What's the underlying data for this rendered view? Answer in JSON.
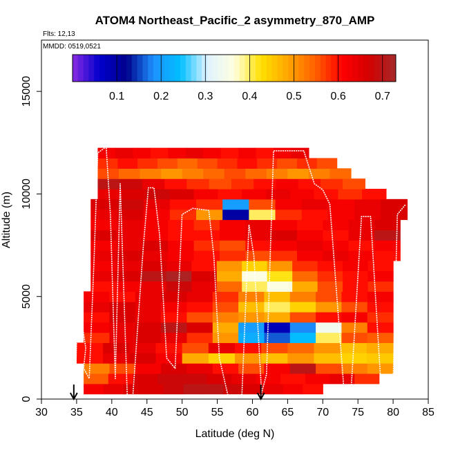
{
  "chart_data": {
    "type": "heatmap",
    "title": "ATOM4 Northeast_Pacific_2 asymmetry_870_AMP",
    "flights_label": "Flts: 12,13",
    "mmdd_label": "MMDD: 0519,0521",
    "xlabel": "Latitude (deg N)",
    "ylabel": "Altitude (m)",
    "xlim": [
      30,
      85
    ],
    "ylim": [
      0,
      17500
    ],
    "x_ticks": [
      "30",
      "35",
      "40",
      "45",
      "50",
      "55",
      "60",
      "65",
      "70",
      "75",
      "80",
      "85"
    ],
    "y_ticks": [
      "0",
      "5000",
      "10000",
      "15000"
    ],
    "colorbar": {
      "range": [
        0.0,
        0.73
      ],
      "ticks": [
        "0.1",
        "0.2",
        "0.3",
        "0.4",
        "0.5",
        "0.6",
        "0.7"
      ],
      "colors": [
        "#8a2be2",
        "#0000cd",
        "#00008b",
        "#1e90ff",
        "#00bfff",
        "#e0f2ff",
        "#ffffe0",
        "#ffe000",
        "#ffa500",
        "#ff6000",
        "#ff0000",
        "#d40000",
        "#a52a2a"
      ]
    },
    "arrow_markers": [
      34.6,
      61.2
    ],
    "rows": [
      {
        "alt": 500,
        "lat": [
          36,
          70
        ],
        "v": [
          0.62,
          0.64,
          0.66,
          0.66,
          0.68,
          0.7,
          0.7,
          0.68,
          0.66,
          0.64,
          0.62,
          0.6
        ]
      },
      {
        "alt": 1000,
        "lat": [
          36,
          78
        ],
        "v": [
          0.55,
          0.6,
          0.66,
          0.68,
          0.68,
          0.66,
          0.64,
          0.62,
          0.6,
          0.62,
          0.64,
          0.58
        ]
      },
      {
        "alt": 1500,
        "lat": [
          36,
          80
        ],
        "v": [
          0.52,
          0.56,
          0.62,
          0.66,
          0.64,
          0.6,
          0.56,
          0.62,
          0.7,
          0.56,
          0.52,
          0.5
        ]
      },
      {
        "alt": 2000,
        "lat": [
          35,
          80
        ],
        "v": [
          0.6,
          0.64,
          0.66,
          0.62,
          0.48,
          0.44,
          0.5,
          0.46,
          0.5,
          0.46,
          0.44,
          0.45
        ]
      },
      {
        "alt": 2500,
        "lat": [
          35,
          80
        ],
        "v": [
          0.6,
          0.66,
          0.64,
          0.6,
          0.56,
          0.64,
          0.6,
          0.56,
          0.54,
          0.5,
          0.46,
          0.48
        ]
      },
      {
        "alt": 3000,
        "lat": [
          36,
          80
        ],
        "v": [
          0.58,
          0.64,
          0.66,
          0.64,
          0.58,
          0.5,
          0.22,
          0.16,
          0.24,
          0.4,
          0.56,
          0.55
        ]
      },
      {
        "alt": 3500,
        "lat": [
          36,
          80
        ],
        "v": [
          0.62,
          0.64,
          0.66,
          0.7,
          0.66,
          0.48,
          0.2,
          0.08,
          0.18,
          0.34,
          0.52,
          0.6
        ]
      },
      {
        "alt": 4000,
        "lat": [
          36,
          80
        ],
        "v": [
          0.6,
          0.66,
          0.64,
          0.6,
          0.56,
          0.52,
          0.5,
          0.48,
          0.56,
          0.6,
          0.62,
          0.58
        ]
      },
      {
        "alt": 4500,
        "lat": [
          36,
          80
        ],
        "v": [
          0.64,
          0.66,
          0.64,
          0.62,
          0.6,
          0.56,
          0.46,
          0.4,
          0.44,
          0.5,
          0.56,
          0.6
        ]
      },
      {
        "alt": 5000,
        "lat": [
          36,
          80
        ],
        "v": [
          0.62,
          0.6,
          0.64,
          0.66,
          0.64,
          0.58,
          0.52,
          0.46,
          0.52,
          0.56,
          0.6,
          0.62
        ]
      },
      {
        "alt": 5500,
        "lat": [
          37,
          80
        ],
        "v": [
          0.6,
          0.62,
          0.64,
          0.68,
          0.64,
          0.54,
          0.4,
          0.36,
          0.48,
          0.56,
          0.6,
          0.58
        ]
      },
      {
        "alt": 6000,
        "lat": [
          37,
          80
        ],
        "v": [
          0.64,
          0.66,
          0.7,
          0.72,
          0.66,
          0.48,
          0.36,
          0.42,
          0.54,
          0.58,
          0.6,
          0.62
        ]
      },
      {
        "alt": 6500,
        "lat": [
          37,
          80
        ],
        "v": [
          0.62,
          0.64,
          0.66,
          0.64,
          0.6,
          0.5,
          0.44,
          0.5,
          0.58,
          0.6,
          0.62,
          0.6
        ]
      },
      {
        "alt": 7000,
        "lat": [
          37,
          81
        ],
        "v": [
          0.64,
          0.66,
          0.64,
          0.62,
          0.6,
          0.58,
          0.56,
          0.58,
          0.62,
          0.64,
          0.62,
          0.6
        ]
      },
      {
        "alt": 7500,
        "lat": [
          37,
          81
        ],
        "v": [
          0.62,
          0.64,
          0.66,
          0.62,
          0.58,
          0.56,
          0.6,
          0.62,
          0.64,
          0.62,
          0.6,
          0.62
        ]
      },
      {
        "alt": 8000,
        "lat": [
          37,
          81
        ],
        "v": [
          0.66,
          0.64,
          0.62,
          0.6,
          0.6,
          0.62,
          0.64,
          0.66,
          0.62,
          0.6,
          0.64,
          0.7
        ]
      },
      {
        "alt": 8500,
        "lat": [
          37,
          81
        ],
        "v": [
          0.62,
          0.64,
          0.62,
          0.6,
          0.58,
          0.62,
          0.64,
          0.62,
          0.6,
          0.62,
          0.64,
          0.66
        ]
      },
      {
        "alt": 9000,
        "lat": [
          37,
          82
        ],
        "v": [
          0.64,
          0.66,
          0.62,
          0.58,
          0.5,
          0.1,
          0.4,
          0.58,
          0.6,
          0.62,
          0.64,
          0.66
        ]
      },
      {
        "alt": 9500,
        "lat": [
          37,
          82
        ],
        "v": [
          0.66,
          0.68,
          0.64,
          0.6,
          0.58,
          0.2,
          0.56,
          0.62,
          0.64,
          0.62,
          0.64,
          0.66
        ]
      },
      {
        "alt": 10000,
        "lat": [
          38,
          79
        ],
        "v": [
          0.64,
          0.66,
          0.68,
          0.66,
          0.62,
          0.6,
          0.62,
          0.64,
          0.62,
          0.6,
          0.58,
          0.6
        ]
      },
      {
        "alt": 10500,
        "lat": [
          38,
          76
        ],
        "v": [
          0.7,
          0.68,
          0.64,
          0.6,
          0.58,
          0.56,
          0.58,
          0.6,
          0.62,
          0.6,
          0.58,
          0.56
        ]
      },
      {
        "alt": 11000,
        "lat": [
          38,
          74
        ],
        "v": [
          0.56,
          0.54,
          0.52,
          0.5,
          0.52,
          0.54,
          0.56,
          0.54,
          0.52,
          0.5,
          0.52,
          0.54
        ]
      },
      {
        "alt": 11500,
        "lat": [
          38,
          72
        ],
        "v": [
          0.58,
          0.6,
          0.58,
          0.56,
          0.54,
          0.56,
          0.58,
          0.6,
          0.58,
          0.56,
          0.58,
          0.56
        ]
      },
      {
        "alt": 12000,
        "lat": [
          38,
          68
        ],
        "v": [
          0.62,
          0.64,
          0.62,
          0.6,
          0.62,
          0.64,
          0.62,
          0.6,
          0.62,
          0.6,
          0.62,
          0.64
        ]
      }
    ],
    "flight_track": [
      [
        34.8,
        500
      ],
      [
        35.2,
        5000
      ],
      [
        36.3,
        2500
      ],
      [
        36.0,
        1500
      ],
      [
        36.8,
        1000
      ],
      [
        37.5,
        7000
      ],
      [
        38.0,
        12000
      ],
      [
        39.2,
        12300
      ],
      [
        39.8,
        9000
      ],
      [
        40.5,
        1000
      ],
      [
        41.2,
        10500
      ],
      [
        42.2,
        200
      ],
      [
        43.0,
        200
      ],
      [
        44.5,
        7500
      ],
      [
        45.2,
        10300
      ],
      [
        46.0,
        10300
      ],
      [
        46.8,
        8000
      ],
      [
        47.8,
        2000
      ],
      [
        49.0,
        1500
      ],
      [
        50.0,
        9000
      ],
      [
        51.5,
        9300
      ],
      [
        53.8,
        9200
      ],
      [
        54.5,
        7000
      ],
      [
        55.3,
        2000
      ],
      [
        56.5,
        200
      ],
      [
        58.5,
        200
      ],
      [
        59.5,
        8500
      ],
      [
        60.2,
        7000
      ],
      [
        61.3,
        300
      ],
      [
        62.0,
        1200
      ],
      [
        63.0,
        12100
      ],
      [
        65.5,
        12100
      ],
      [
        67.3,
        12100
      ],
      [
        68.8,
        10500
      ],
      [
        70.0,
        10200
      ],
      [
        71.0,
        9500
      ],
      [
        73.0,
        500
      ],
      [
        74.0,
        300
      ],
      [
        75.5,
        8900
      ],
      [
        76.8,
        8900
      ],
      [
        78.3,
        500
      ],
      [
        79.0,
        300
      ],
      [
        80.0,
        800
      ],
      [
        80.6,
        9000
      ],
      [
        81.8,
        9500
      ]
    ]
  }
}
